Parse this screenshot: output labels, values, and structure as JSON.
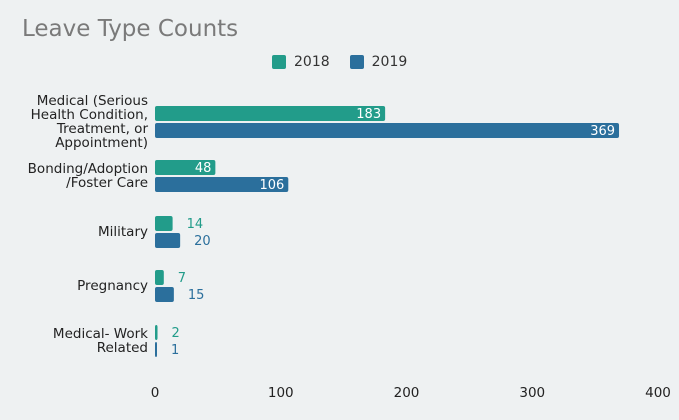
{
  "chart_data": {
    "type": "bar",
    "orientation": "horizontal",
    "title": "Leave Type Counts",
    "categories": [
      [
        "Medical (Serious",
        "Health Condition,",
        "Treatment, or",
        "Appointment)"
      ],
      [
        "Bonding/Adoption",
        "/Foster Care"
      ],
      [
        "Military"
      ],
      [
        "Pregnancy"
      ],
      [
        "Medical- Work",
        "Related"
      ]
    ],
    "series": [
      {
        "name": "2018",
        "color": "#229c8a",
        "values": [
          183,
          48,
          14,
          7,
          2
        ],
        "value_labels": [
          "183",
          "48",
          "14",
          "7",
          "2"
        ]
      },
      {
        "name": "2019",
        "color": "#2b6f9c",
        "values": [
          369,
          106,
          20,
          15,
          1
        ],
        "value_labels": [
          "369",
          "106",
          "20",
          "15",
          "1"
        ]
      }
    ],
    "xlim": [
      0,
      400
    ],
    "xticks": [
      "0",
      "100",
      "200",
      "300",
      "400"
    ],
    "xtick_values": [
      0,
      100,
      200,
      300,
      400
    ],
    "grid": false,
    "legend": "top-center"
  }
}
